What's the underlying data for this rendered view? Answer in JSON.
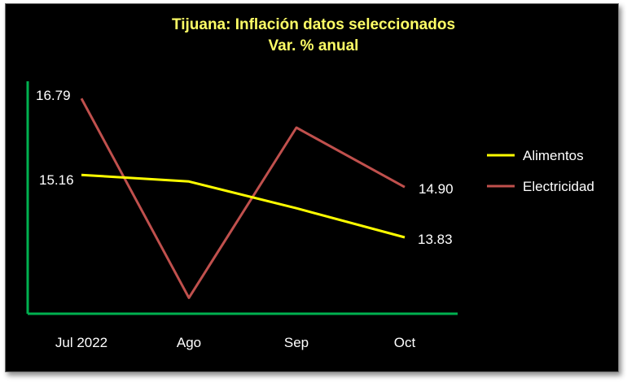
{
  "chart_data": {
    "type": "line",
    "title": "Tijuana: Inflación datos seleccionados",
    "subtitle": "Var. % anual",
    "categories": [
      "Jul 2022",
      "Ago",
      "Sep",
      "Oct"
    ],
    "series": [
      {
        "name": "Alimentos",
        "color": "#ffff00",
        "values": [
          15.16,
          15.02,
          14.45,
          13.83
        ],
        "labels": [
          "15.16",
          "",
          "",
          "13.83"
        ]
      },
      {
        "name": "Electricidad",
        "color": "#c0504d",
        "values": [
          16.79,
          12.54,
          16.17,
          14.9
        ],
        "labels": [
          "16.79",
          "",
          "",
          "14.90"
        ]
      }
    ],
    "ylim": [
      12.2,
      17.4
    ],
    "grid": false,
    "legend": "right",
    "axis_color": "#00b050"
  }
}
